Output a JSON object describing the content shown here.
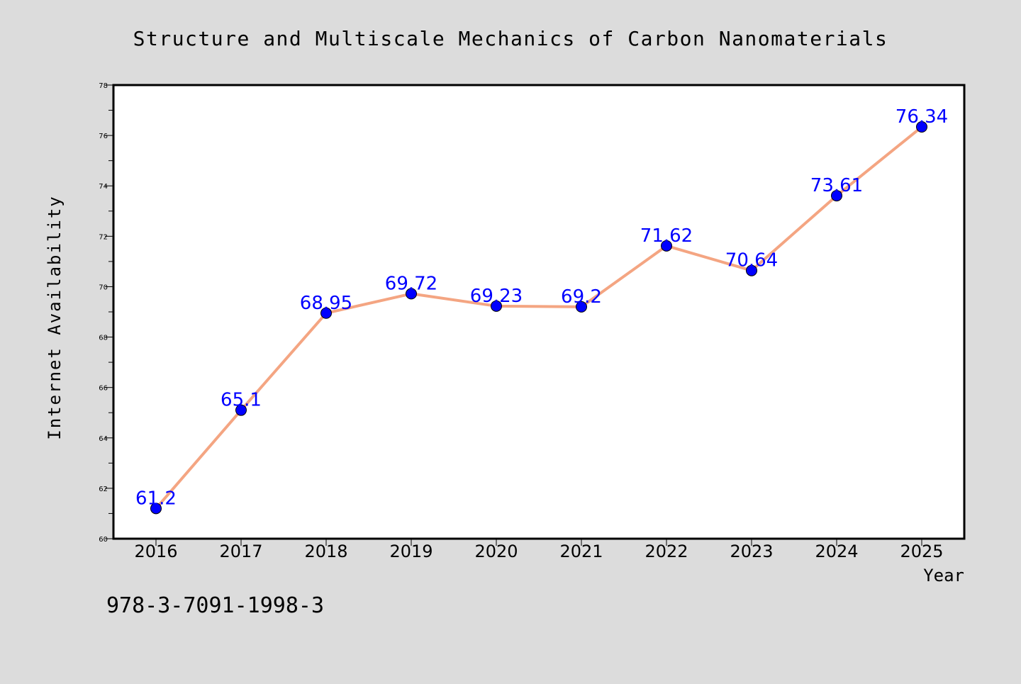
{
  "chart_data": {
    "type": "line",
    "title": "Structure and Multiscale Mechanics of Carbon Nanomaterials",
    "xlabel": "Year",
    "ylabel": "Internet Availability",
    "categories": [
      "2016",
      "2017",
      "2018",
      "2019",
      "2020",
      "2021",
      "2022",
      "2023",
      "2024",
      "2025"
    ],
    "series": [
      {
        "values": [
          61.2,
          65.1,
          68.95,
          69.72,
          69.23,
          69.2,
          71.62,
          70.64,
          73.61,
          76.34
        ],
        "data_labels": [
          "61.2",
          "65.1",
          "68.95",
          "69.72",
          "69.23",
          "69.2",
          "71.62",
          "70.64",
          "73.61",
          "76.34"
        ]
      }
    ],
    "ylim": [
      60,
      78
    ],
    "yticks": [
      "60",
      "62",
      "64",
      "66",
      "68",
      "70",
      "72",
      "74",
      "76",
      "78"
    ],
    "grid": false,
    "colors": {
      "background": "#dcdcdc",
      "plot_area": "#ffffff",
      "line": "#f4a582",
      "marker": "#0000ff",
      "data_label": "#0000ff",
      "text": "#000000"
    }
  },
  "footer": {
    "isbn": "978-3-7091-1998-3"
  }
}
